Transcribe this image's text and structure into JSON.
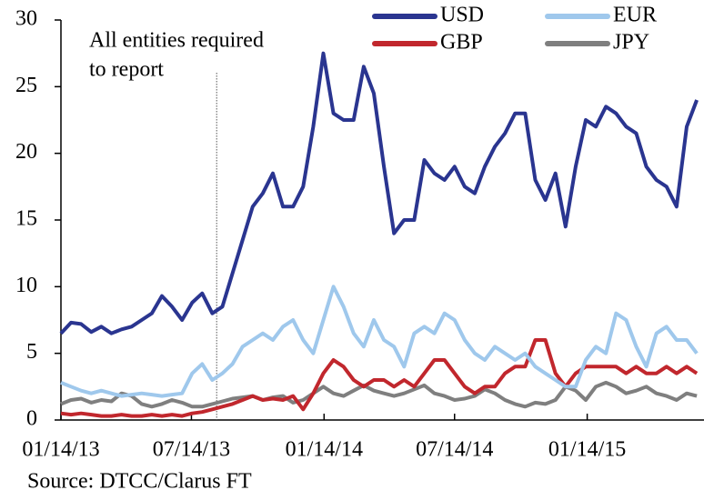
{
  "chart_data": {
    "type": "line",
    "x": [
      "2013-01-14",
      "2013-01-28",
      "2013-02-11",
      "2013-02-25",
      "2013-03-11",
      "2013-03-25",
      "2013-04-08",
      "2013-04-22",
      "2013-05-06",
      "2013-05-20",
      "2013-06-03",
      "2013-06-17",
      "2013-07-01",
      "2013-07-15",
      "2013-07-29",
      "2013-08-12",
      "2013-08-26",
      "2013-09-09",
      "2013-09-23",
      "2013-10-07",
      "2013-10-21",
      "2013-11-04",
      "2013-11-18",
      "2013-12-02",
      "2013-12-16",
      "2013-12-30",
      "2014-01-13",
      "2014-01-27",
      "2014-02-10",
      "2014-02-24",
      "2014-03-10",
      "2014-03-24",
      "2014-04-07",
      "2014-04-21",
      "2014-05-05",
      "2014-05-19",
      "2014-06-02",
      "2014-06-16",
      "2014-06-30",
      "2014-07-14",
      "2014-07-28",
      "2014-08-11",
      "2014-08-25",
      "2014-09-08",
      "2014-09-22",
      "2014-10-06",
      "2014-10-20",
      "2014-11-03",
      "2014-11-17",
      "2014-12-01",
      "2014-12-15",
      "2014-12-29",
      "2015-01-12",
      "2015-01-26",
      "2015-02-09",
      "2015-02-23",
      "2015-03-09",
      "2015-03-23",
      "2015-04-06",
      "2015-04-20",
      "2015-05-04",
      "2015-05-18",
      "2015-06-01",
      "2015-06-15"
    ],
    "series": [
      {
        "name": "USD",
        "color": "#2a3590",
        "values": [
          6.5,
          7.3,
          7.2,
          6.6,
          7.0,
          6.5,
          6.8,
          7.0,
          7.5,
          8.0,
          9.3,
          8.5,
          7.5,
          8.8,
          9.5,
          8.0,
          8.5,
          11,
          13.5,
          16,
          17,
          18.5,
          16,
          16,
          17.5,
          22,
          27.5,
          23,
          22.5,
          22.5,
          26.5,
          24.5,
          19,
          14,
          15,
          15,
          19.5,
          18.5,
          18,
          19,
          17.5,
          17,
          19,
          20.5,
          21.5,
          23,
          23,
          18,
          16.5,
          18.5,
          14.5,
          19,
          22.5,
          22,
          23.5,
          23,
          22,
          21.5,
          19,
          18,
          17.5,
          16,
          22,
          24
        ]
      },
      {
        "name": "EUR",
        "color": "#9fc8ec",
        "values": [
          2.8,
          2.5,
          2.2,
          2.0,
          2.2,
          2.0,
          1.8,
          1.9,
          2.0,
          1.9,
          1.8,
          1.9,
          2.0,
          3.5,
          4.2,
          3.0,
          3.5,
          4.2,
          5.5,
          6.0,
          6.5,
          6.0,
          7.0,
          7.5,
          6.0,
          5.0,
          7.5,
          10.0,
          8.5,
          6.5,
          5.5,
          7.5,
          6.0,
          5.5,
          4.0,
          6.5,
          7.0,
          6.5,
          8.0,
          7.5,
          6.0,
          5.0,
          4.5,
          5.5,
          5.0,
          4.5,
          5.0,
          4.0,
          3.5,
          3.0,
          2.5,
          2.5,
          4.5,
          5.5,
          5.0,
          8.0,
          7.5,
          5.5,
          4.0,
          6.5,
          7.0,
          6.0,
          6.0,
          5.0
        ]
      },
      {
        "name": "GBP",
        "color": "#c1272d",
        "values": [
          0.5,
          0.4,
          0.5,
          0.4,
          0.3,
          0.3,
          0.4,
          0.3,
          0.3,
          0.4,
          0.3,
          0.4,
          0.3,
          0.5,
          0.6,
          0.8,
          1.0,
          1.2,
          1.5,
          1.8,
          1.5,
          1.6,
          1.5,
          1.8,
          0.8,
          2.0,
          3.5,
          4.5,
          4.0,
          3.0,
          2.5,
          3.0,
          3.0,
          2.5,
          3.0,
          2.5,
          3.5,
          4.5,
          4.5,
          3.5,
          2.5,
          2.0,
          2.5,
          2.5,
          3.5,
          4.0,
          4.0,
          6.0,
          6.0,
          3.5,
          2.5,
          3.5,
          4.0,
          4.0,
          4.0,
          4.0,
          3.5,
          4.0,
          3.5,
          3.5,
          4.0,
          3.5,
          4.0,
          3.5
        ]
      },
      {
        "name": "JPY",
        "color": "#7f7f7f",
        "values": [
          1.2,
          1.5,
          1.6,
          1.3,
          1.5,
          1.4,
          2.0,
          1.8,
          1.2,
          1.0,
          1.2,
          1.5,
          1.3,
          1.0,
          1.0,
          1.2,
          1.4,
          1.6,
          1.7,
          1.8,
          1.5,
          1.7,
          1.8,
          1.3,
          1.5,
          2.0,
          2.5,
          2.0,
          1.8,
          2.2,
          2.6,
          2.2,
          2.0,
          1.8,
          2.0,
          2.3,
          2.6,
          2.0,
          1.8,
          1.5,
          1.6,
          1.8,
          2.3,
          2.0,
          1.5,
          1.2,
          1.0,
          1.3,
          1.2,
          1.5,
          2.5,
          2.2,
          1.5,
          2.5,
          2.8,
          2.5,
          2.0,
          2.2,
          2.5,
          2.0,
          1.8,
          1.5,
          2.0,
          1.8
        ]
      }
    ],
    "xlim": [
      "2013-01-14",
      "2015-06-25"
    ],
    "xticks": [
      {
        "value": "2013-01-14",
        "label": "01/14/13"
      },
      {
        "value": "2013-07-14",
        "label": "07/14/13"
      },
      {
        "value": "2014-01-14",
        "label": "01/14/14"
      },
      {
        "value": "2014-07-14",
        "label": "07/14/14"
      },
      {
        "value": "2015-01-14",
        "label": "01/14/15"
      }
    ],
    "ylim": [
      0,
      30
    ],
    "yticks": [
      0,
      5,
      10,
      15,
      20,
      25,
      30
    ],
    "annotation": {
      "text": [
        "All entities required",
        "to report"
      ],
      "x": "2013-08-18"
    },
    "source": "Source: DTCC/Clarus FT"
  }
}
